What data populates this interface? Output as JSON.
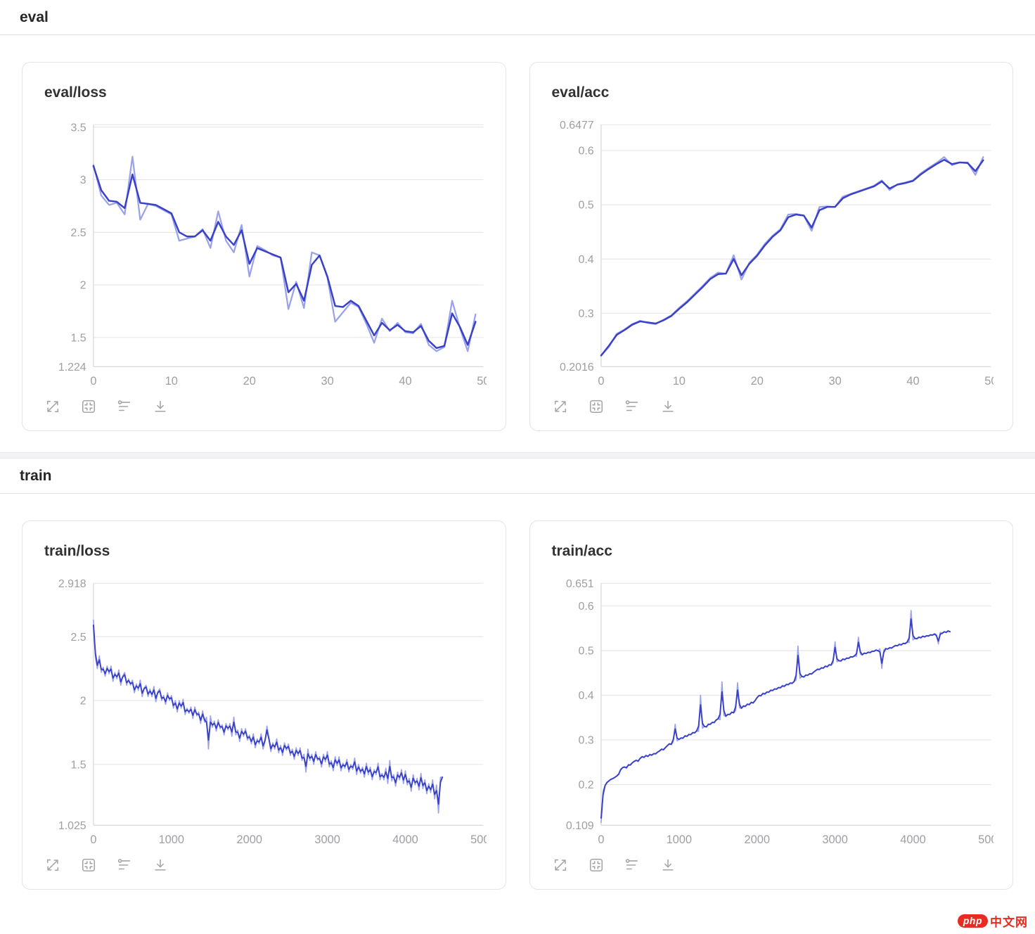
{
  "sections": [
    {
      "id": "eval",
      "title": "eval"
    },
    {
      "id": "train",
      "title": "train"
    }
  ],
  "toolbar": {
    "icons": [
      {
        "name": "fullscreen-icon"
      },
      {
        "name": "fit-view-icon"
      },
      {
        "name": "smoothing-icon"
      },
      {
        "name": "download-icon"
      }
    ]
  },
  "colors": {
    "raw_line": "#9aa2ec",
    "smooth_line": "#3a41c9",
    "grid": "#e4e4e6",
    "axis": "#cfcfd3",
    "tick_text": "#9e9ea3"
  },
  "watermark": {
    "badge": "php",
    "text": "中文网",
    "color": "#e52d22"
  },
  "chart_data": [
    {
      "id": "eval_loss",
      "type": "line",
      "title": "eval/loss",
      "xlim": [
        0,
        50
      ],
      "ylim": [
        1.224,
        3.523
      ],
      "x_step": 1,
      "xticks": [
        {
          "v": 0,
          "label": "0"
        },
        {
          "v": 10,
          "label": "10"
        },
        {
          "v": 20,
          "label": "20"
        },
        {
          "v": 30,
          "label": "30"
        },
        {
          "v": 40,
          "label": "40"
        },
        {
          "v": 50,
          "label": "50"
        }
      ],
      "yticks": [
        {
          "v": 3.523,
          "label": ""
        },
        {
          "v": 3.5,
          "label": "3.5"
        },
        {
          "v": 3,
          "label": "3"
        },
        {
          "v": 2.5,
          "label": "2.5"
        },
        {
          "v": 2,
          "label": "2"
        },
        {
          "v": 1.5,
          "label": "1.5"
        },
        {
          "v": 1.224,
          "label": "1.224"
        }
      ],
      "series": [
        {
          "name": "raw",
          "role": "raw",
          "values": [
            3.14,
            2.85,
            2.76,
            2.78,
            2.67,
            3.22,
            2.62,
            2.77,
            2.75,
            2.71,
            2.67,
            2.42,
            2.44,
            2.46,
            2.53,
            2.35,
            2.7,
            2.42,
            2.31,
            2.57,
            2.08,
            2.37,
            2.33,
            2.28,
            2.26,
            1.77,
            2.03,
            1.78,
            2.31,
            2.28,
            2.07,
            1.65,
            1.74,
            1.83,
            1.79,
            1.63,
            1.45,
            1.68,
            1.56,
            1.64,
            1.55,
            1.54,
            1.63,
            1.43,
            1.37,
            1.41,
            1.85,
            1.59,
            1.37,
            1.72
          ]
        },
        {
          "name": "smoothed",
          "role": "smooth",
          "values": [
            3.13,
            2.9,
            2.8,
            2.79,
            2.73,
            3.05,
            2.78,
            2.77,
            2.76,
            2.72,
            2.68,
            2.5,
            2.46,
            2.46,
            2.52,
            2.42,
            2.6,
            2.46,
            2.38,
            2.52,
            2.2,
            2.35,
            2.32,
            2.29,
            2.26,
            1.93,
            2.01,
            1.85,
            2.19,
            2.28,
            2.08,
            1.8,
            1.79,
            1.85,
            1.8,
            1.66,
            1.52,
            1.64,
            1.57,
            1.62,
            1.56,
            1.55,
            1.61,
            1.47,
            1.4,
            1.42,
            1.73,
            1.6,
            1.43,
            1.65
          ]
        }
      ]
    },
    {
      "id": "eval_acc",
      "type": "line",
      "title": "eval/acc",
      "xlim": [
        0,
        50
      ],
      "ylim": [
        0.2016,
        0.6477
      ],
      "x_step": 1,
      "xticks": [
        {
          "v": 0,
          "label": "0"
        },
        {
          "v": 10,
          "label": "10"
        },
        {
          "v": 20,
          "label": "20"
        },
        {
          "v": 30,
          "label": "30"
        },
        {
          "v": 40,
          "label": "40"
        },
        {
          "v": 50,
          "label": "50"
        }
      ],
      "yticks": [
        {
          "v": 0.6477,
          "label": "0.6477"
        },
        {
          "v": 0.6,
          "label": "0.6"
        },
        {
          "v": 0.5,
          "label": "0.5"
        },
        {
          "v": 0.4,
          "label": "0.4"
        },
        {
          "v": 0.3,
          "label": "0.3"
        },
        {
          "v": 0.2016,
          "label": "0.2016"
        }
      ],
      "series": [
        {
          "name": "raw",
          "role": "raw",
          "values": [
            0.222,
            0.238,
            0.262,
            0.27,
            0.28,
            0.286,
            0.282,
            0.28,
            0.288,
            0.296,
            0.31,
            0.322,
            0.336,
            0.35,
            0.365,
            0.375,
            0.373,
            0.407,
            0.362,
            0.393,
            0.408,
            0.428,
            0.443,
            0.455,
            0.482,
            0.483,
            0.48,
            0.452,
            0.496,
            0.497,
            0.496,
            0.515,
            0.52,
            0.525,
            0.53,
            0.535,
            0.545,
            0.527,
            0.538,
            0.541,
            0.545,
            0.558,
            0.568,
            0.577,
            0.588,
            0.573,
            0.578,
            0.578,
            0.555,
            0.588
          ]
        },
        {
          "name": "smoothed",
          "role": "smooth",
          "values": [
            0.222,
            0.24,
            0.26,
            0.269,
            0.279,
            0.285,
            0.283,
            0.281,
            0.287,
            0.295,
            0.308,
            0.32,
            0.334,
            0.348,
            0.363,
            0.372,
            0.373,
            0.4,
            0.37,
            0.391,
            0.406,
            0.425,
            0.441,
            0.453,
            0.477,
            0.482,
            0.48,
            0.458,
            0.49,
            0.496,
            0.496,
            0.512,
            0.519,
            0.524,
            0.529,
            0.534,
            0.543,
            0.53,
            0.537,
            0.54,
            0.544,
            0.556,
            0.566,
            0.575,
            0.583,
            0.575,
            0.578,
            0.577,
            0.562,
            0.582
          ]
        }
      ]
    },
    {
      "id": "train_loss",
      "type": "line",
      "title": "train/loss",
      "xlim": [
        0,
        5000
      ],
      "ylim": [
        1.025,
        2.918
      ],
      "x_step": 25,
      "derive_smooth": true,
      "xticks": [
        {
          "v": 0,
          "label": "0"
        },
        {
          "v": 1000,
          "label": "1000"
        },
        {
          "v": 2000,
          "label": "2000"
        },
        {
          "v": 3000,
          "label": "3000"
        },
        {
          "v": 4000,
          "label": "4000"
        },
        {
          "v": 5000,
          "label": "5000"
        }
      ],
      "yticks": [
        {
          "v": 2.918,
          "label": "2.918"
        },
        {
          "v": 2.5,
          "label": "2.5"
        },
        {
          "v": 2,
          "label": "2"
        },
        {
          "v": 1.5,
          "label": "1.5"
        },
        {
          "v": 1.025,
          "label": "1.025"
        }
      ],
      "series": [
        {
          "name": "raw",
          "role": "raw",
          "values": [
            2.63,
            2.34,
            2.25,
            2.35,
            2.22,
            2.26,
            2.19,
            2.27,
            2.21,
            2.27,
            2.15,
            2.22,
            2.17,
            2.24,
            2.12,
            2.19,
            2.22,
            2.12,
            2.17,
            2.12,
            2.16,
            2.06,
            2.13,
            2.08,
            2.16,
            2.03,
            2.1,
            2.12,
            2.03,
            2.09,
            2.03,
            2.11,
            1.99,
            2.07,
            2.09,
            2.0,
            2.04,
            1.97,
            2.06,
            2.0,
            2.04,
            1.94,
            2.0,
            1.91,
            2.0,
            1.94,
            2.01,
            1.89,
            1.94,
            1.9,
            1.95,
            1.86,
            1.95,
            1.88,
            1.91,
            1.82,
            1.92,
            1.83,
            1.87,
            1.62,
            1.88,
            1.79,
            1.84,
            1.76,
            1.85,
            1.78,
            1.81,
            1.73,
            1.82,
            1.77,
            1.82,
            1.72,
            1.87,
            1.73,
            1.77,
            1.68,
            1.78,
            1.72,
            1.78,
            1.69,
            1.73,
            1.66,
            1.74,
            1.63,
            1.7,
            1.66,
            1.74,
            1.62,
            1.68,
            1.8,
            1.7,
            1.6,
            1.67,
            1.62,
            1.7,
            1.59,
            1.65,
            1.57,
            1.67,
            1.61,
            1.66,
            1.57,
            1.62,
            1.54,
            1.63,
            1.57,
            1.63,
            1.53,
            1.58,
            1.44,
            1.62,
            1.53,
            1.58,
            1.5,
            1.6,
            1.53,
            1.56,
            1.48,
            1.58,
            1.52,
            1.6,
            1.48,
            1.53,
            1.45,
            1.56,
            1.49,
            1.56,
            1.45,
            1.51,
            1.47,
            1.54,
            1.44,
            1.5,
            1.46,
            1.55,
            1.42,
            1.5,
            1.43,
            1.48,
            1.4,
            1.51,
            1.42,
            1.48,
            1.38,
            1.46,
            1.42,
            1.51,
            1.38,
            1.43,
            1.38,
            1.47,
            1.35,
            1.53,
            1.37,
            1.42,
            1.33,
            1.44,
            1.38,
            1.46,
            1.35,
            1.45,
            1.34,
            1.39,
            1.29,
            1.42,
            1.34,
            1.39,
            1.3,
            1.43,
            1.31,
            1.38,
            1.27,
            1.35,
            1.28,
            1.38,
            1.23,
            1.34,
            1.12,
            1.4,
            1.4
          ]
        }
      ]
    },
    {
      "id": "train_acc",
      "type": "line",
      "title": "train/acc",
      "xlim": [
        0,
        5000
      ],
      "ylim": [
        0.109,
        0.651
      ],
      "x_step": 25,
      "derive_smooth": true,
      "xticks": [
        {
          "v": 0,
          "label": "0"
        },
        {
          "v": 1000,
          "label": "1000"
        },
        {
          "v": 2000,
          "label": "2000"
        },
        {
          "v": 3000,
          "label": "3000"
        },
        {
          "v": 4000,
          "label": "4000"
        },
        {
          "v": 5000,
          "label": "5000"
        }
      ],
      "yticks": [
        {
          "v": 0.651,
          "label": "0.651"
        },
        {
          "v": 0.6,
          "label": "0.6"
        },
        {
          "v": 0.5,
          "label": "0.5"
        },
        {
          "v": 0.4,
          "label": "0.4"
        },
        {
          "v": 0.3,
          "label": "0.3"
        },
        {
          "v": 0.2,
          "label": "0.2"
        },
        {
          "v": 0.109,
          "label": "0.109"
        }
      ],
      "series": [
        {
          "name": "raw",
          "role": "raw",
          "values": [
            0.115,
            0.185,
            0.198,
            0.205,
            0.208,
            0.212,
            0.213,
            0.216,
            0.219,
            0.222,
            0.234,
            0.238,
            0.24,
            0.236,
            0.245,
            0.243,
            0.249,
            0.252,
            0.255,
            0.251,
            0.259,
            0.263,
            0.26,
            0.266,
            0.262,
            0.268,
            0.265,
            0.27,
            0.268,
            0.273,
            0.275,
            0.28,
            0.277,
            0.283,
            0.287,
            0.292,
            0.289,
            0.296,
            0.335,
            0.298,
            0.301,
            0.305,
            0.303,
            0.31,
            0.307,
            0.313,
            0.311,
            0.317,
            0.315,
            0.321,
            0.319,
            0.4,
            0.326,
            0.331,
            0.328,
            0.336,
            0.334,
            0.34,
            0.338,
            0.345,
            0.348,
            0.345,
            0.43,
            0.355,
            0.352,
            0.358,
            0.356,
            0.363,
            0.36,
            0.366,
            0.428,
            0.372,
            0.37,
            0.377,
            0.374,
            0.381,
            0.378,
            0.385,
            0.382,
            0.388,
            0.395,
            0.4,
            0.398,
            0.405,
            0.402,
            0.408,
            0.406,
            0.412,
            0.41,
            0.415,
            0.413,
            0.418,
            0.416,
            0.422,
            0.419,
            0.425,
            0.423,
            0.428,
            0.426,
            0.431,
            0.434,
            0.51,
            0.438,
            0.443,
            0.44,
            0.446,
            0.444,
            0.449,
            0.447,
            0.452,
            0.455,
            0.459,
            0.457,
            0.462,
            0.46,
            0.466,
            0.463,
            0.469,
            0.467,
            0.472,
            0.52,
            0.475,
            0.478,
            0.476,
            0.482,
            0.479,
            0.484,
            0.482,
            0.487,
            0.485,
            0.489,
            0.487,
            0.53,
            0.492,
            0.49,
            0.495,
            0.493,
            0.497,
            0.495,
            0.499,
            0.498,
            0.502,
            0.499,
            0.504,
            0.46,
            0.501,
            0.505,
            0.503,
            0.507,
            0.505,
            0.509,
            0.512,
            0.51,
            0.515,
            0.512,
            0.517,
            0.515,
            0.52,
            0.518,
            0.59,
            0.524,
            0.528,
            0.526,
            0.531,
            0.528,
            0.533,
            0.53,
            0.534,
            0.532,
            0.536,
            0.534,
            0.538,
            0.536,
            0.515,
            0.541,
            0.538,
            0.543,
            0.54,
            0.545,
            0.542
          ]
        }
      ]
    }
  ]
}
